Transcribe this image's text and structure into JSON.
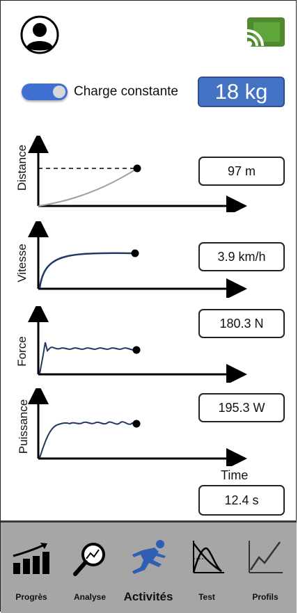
{
  "header": {
    "avatar_icon": "user-avatar-icon",
    "cast_icon": "cast-icon",
    "cast_color": "#4f8a2e"
  },
  "load": {
    "toggle_on": true,
    "toggle_label": "Charge constante",
    "weight": "18 kg"
  },
  "charts": [
    {
      "label": "Distance",
      "value": "97 m"
    },
    {
      "label": "Vitesse",
      "value": "3.9 km/h"
    },
    {
      "label": "Force",
      "value": "180.3 N"
    },
    {
      "label": "Puissance",
      "value": "195.3 W"
    }
  ],
  "time": {
    "label": "Time",
    "value": "12.4 s"
  },
  "nav": {
    "items": [
      {
        "label": "Progrès",
        "icon": "progress-bars-icon",
        "active": false
      },
      {
        "label": "Analyse",
        "icon": "magnifier-chart-icon",
        "active": false
      },
      {
        "label": "Activités",
        "icon": "runner-icon",
        "active": true
      },
      {
        "label": "Test",
        "icon": "test-curve-icon",
        "active": false
      },
      {
        "label": "Profils",
        "icon": "profile-chart-icon",
        "active": false
      }
    ],
    "active_color": "#2f5fb3"
  }
}
